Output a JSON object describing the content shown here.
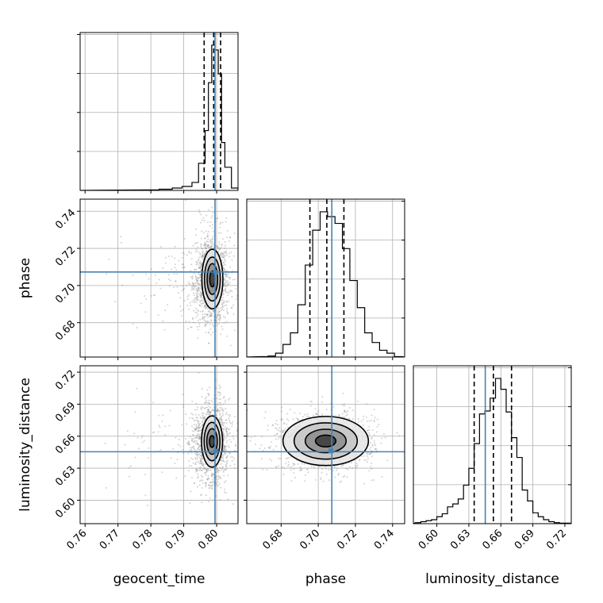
{
  "chart_data": {
    "type": "corner",
    "parameters": [
      "geocent_time",
      "phase",
      "luminosity_distance"
    ],
    "ranges": {
      "geocent_time": [
        0.7585,
        0.8065
      ],
      "phase": [
        0.6615,
        0.7465
      ],
      "luminosity_distance": [
        0.578,
        0.726
      ]
    },
    "ticks": {
      "geocent_time": [
        0.76,
        0.77,
        0.78,
        0.79,
        0.8
      ],
      "phase": [
        0.68,
        0.7,
        0.72,
        0.74
      ],
      "luminosity_distance": [
        0.6,
        0.63,
        0.66,
        0.69,
        0.72
      ]
    },
    "tick_labels": {
      "geocent_time": [
        "0.76",
        "0.77",
        "0.78",
        "0.79",
        "0.80"
      ],
      "phase": [
        "0.68",
        "0.70",
        "0.72",
        "0.74"
      ],
      "luminosity_distance": [
        "0.60",
        "0.63",
        "0.66",
        "0.69",
        "0.72"
      ]
    },
    "axis_labels": {
      "geocent_time": "geocent_time",
      "phase": "phase",
      "luminosity_distance": "luminosity_distance"
    },
    "truths": {
      "geocent_time": 0.7995,
      "phase": 0.7073,
      "luminosity_distance": 0.6454
    },
    "quantiles": {
      "geocent_time": [
        0.7962,
        0.7991,
        0.8012
      ],
      "phase": [
        0.6955,
        0.7046,
        0.7138
      ],
      "luminosity_distance": [
        0.635,
        0.653,
        0.67
      ]
    },
    "histograms": {
      "geocent_time": {
        "bins": [
          [
            0.7785,
            0.7825
          ],
          [
            0.7825,
            0.7865
          ],
          [
            0.7865,
            0.7895
          ],
          [
            0.7895,
            0.7925
          ],
          [
            0.7925,
            0.7945
          ],
          [
            0.7945,
            0.7965
          ],
          [
            0.7965,
            0.7975
          ],
          [
            0.7975,
            0.7985
          ],
          [
            0.7985,
            0.7995
          ],
          [
            0.7995,
            0.8005
          ],
          [
            0.8005,
            0.8015
          ],
          [
            0.8015,
            0.8025
          ],
          [
            0.8025,
            0.8045
          ],
          [
            0.8045,
            0.8065
          ]
        ],
        "counts": [
          0.7,
          1.5,
          3,
          5,
          10,
          34,
          75,
          135,
          182,
          176,
          146,
          60,
          29,
          3
        ]
      },
      "phase": {
        "bins": [
          [
            0.669,
            0.673
          ],
          [
            0.673,
            0.677
          ],
          [
            0.677,
            0.681
          ],
          [
            0.681,
            0.685
          ],
          [
            0.685,
            0.689
          ],
          [
            0.689,
            0.693
          ],
          [
            0.693,
            0.697
          ],
          [
            0.697,
            0.701
          ],
          [
            0.701,
            0.705
          ],
          [
            0.705,
            0.709
          ],
          [
            0.709,
            0.713
          ],
          [
            0.713,
            0.717
          ],
          [
            0.717,
            0.721
          ],
          [
            0.721,
            0.725
          ],
          [
            0.725,
            0.729
          ],
          [
            0.729,
            0.733
          ],
          [
            0.733,
            0.737
          ],
          [
            0.737,
            0.741
          ],
          [
            0.741,
            0.745
          ]
        ],
        "counts": [
          0.4,
          1,
          4,
          13,
          25,
          54,
          95,
          131,
          150,
          145,
          138,
          112,
          79,
          51,
          25,
          15,
          7,
          4,
          0.4
        ]
      },
      "luminosity_distance": {
        "bins": [
          [
            0.58,
            0.585
          ],
          [
            0.585,
            0.59
          ],
          [
            0.59,
            0.595
          ],
          [
            0.595,
            0.6
          ],
          [
            0.6,
            0.605
          ],
          [
            0.605,
            0.61
          ],
          [
            0.61,
            0.615
          ],
          [
            0.615,
            0.62
          ],
          [
            0.62,
            0.625
          ],
          [
            0.625,
            0.63
          ],
          [
            0.63,
            0.635
          ],
          [
            0.635,
            0.64
          ],
          [
            0.64,
            0.645
          ],
          [
            0.645,
            0.65
          ],
          [
            0.65,
            0.655
          ],
          [
            0.655,
            0.66
          ],
          [
            0.66,
            0.665
          ],
          [
            0.665,
            0.67
          ],
          [
            0.67,
            0.675
          ],
          [
            0.675,
            0.68
          ],
          [
            0.68,
            0.685
          ],
          [
            0.685,
            0.69
          ],
          [
            0.69,
            0.695
          ],
          [
            0.695,
            0.7
          ],
          [
            0.7,
            0.705
          ],
          [
            0.705,
            0.71
          ],
          [
            0.71,
            0.715
          ],
          [
            0.715,
            0.72
          ],
          [
            0.72,
            0.725
          ]
        ],
        "counts": [
          1,
          2,
          3,
          4,
          7,
          10,
          17,
          20,
          25,
          39,
          56,
          81,
          111,
          114,
          127,
          147,
          136,
          113,
          87,
          67,
          34,
          23,
          11,
          7,
          4,
          2,
          1,
          0.5,
          0.5
        ]
      }
    },
    "pairs": [
      {
        "x": "geocent_time",
        "y": "phase",
        "center": [
          0.7987,
          0.7035
        ],
        "contour_radii": [
          [
            0.0008,
            0.0042
          ],
          [
            0.0016,
            0.0083
          ],
          [
            0.0024,
            0.0118
          ],
          [
            0.0032,
            0.016
          ]
        ],
        "spread": [
          0.0027,
          0.0124
        ],
        "marginal_point": [
          0.7998,
          0.7071
        ]
      },
      {
        "x": "geocent_time",
        "y": "luminosity_distance",
        "center": [
          0.7986,
          0.655
        ],
        "contour_radii": [
          [
            0.0008,
            0.0055
          ],
          [
            0.0016,
            0.012
          ],
          [
            0.0024,
            0.018
          ],
          [
            0.0032,
            0.024
          ]
        ],
        "spread": [
          0.0027,
          0.019
        ],
        "marginal_point": [
          0.7998,
          0.646
        ]
      },
      {
        "x": "phase",
        "y": "luminosity_distance",
        "center": [
          0.704,
          0.6555
        ],
        "contour_radii": [
          [
            0.0055,
            0.0055
          ],
          [
            0.011,
            0.011
          ],
          [
            0.017,
            0.017
          ],
          [
            0.023,
            0.023
          ]
        ],
        "spread": [
          0.013,
          0.0135
        ],
        "marginal_point": [
          0.7068,
          0.6462
        ]
      }
    ],
    "colors": {
      "truth": "#4682b4",
      "hist": "#000000",
      "grid": "#b0b0b0",
      "points": "#808080"
    },
    "grid": true
  }
}
